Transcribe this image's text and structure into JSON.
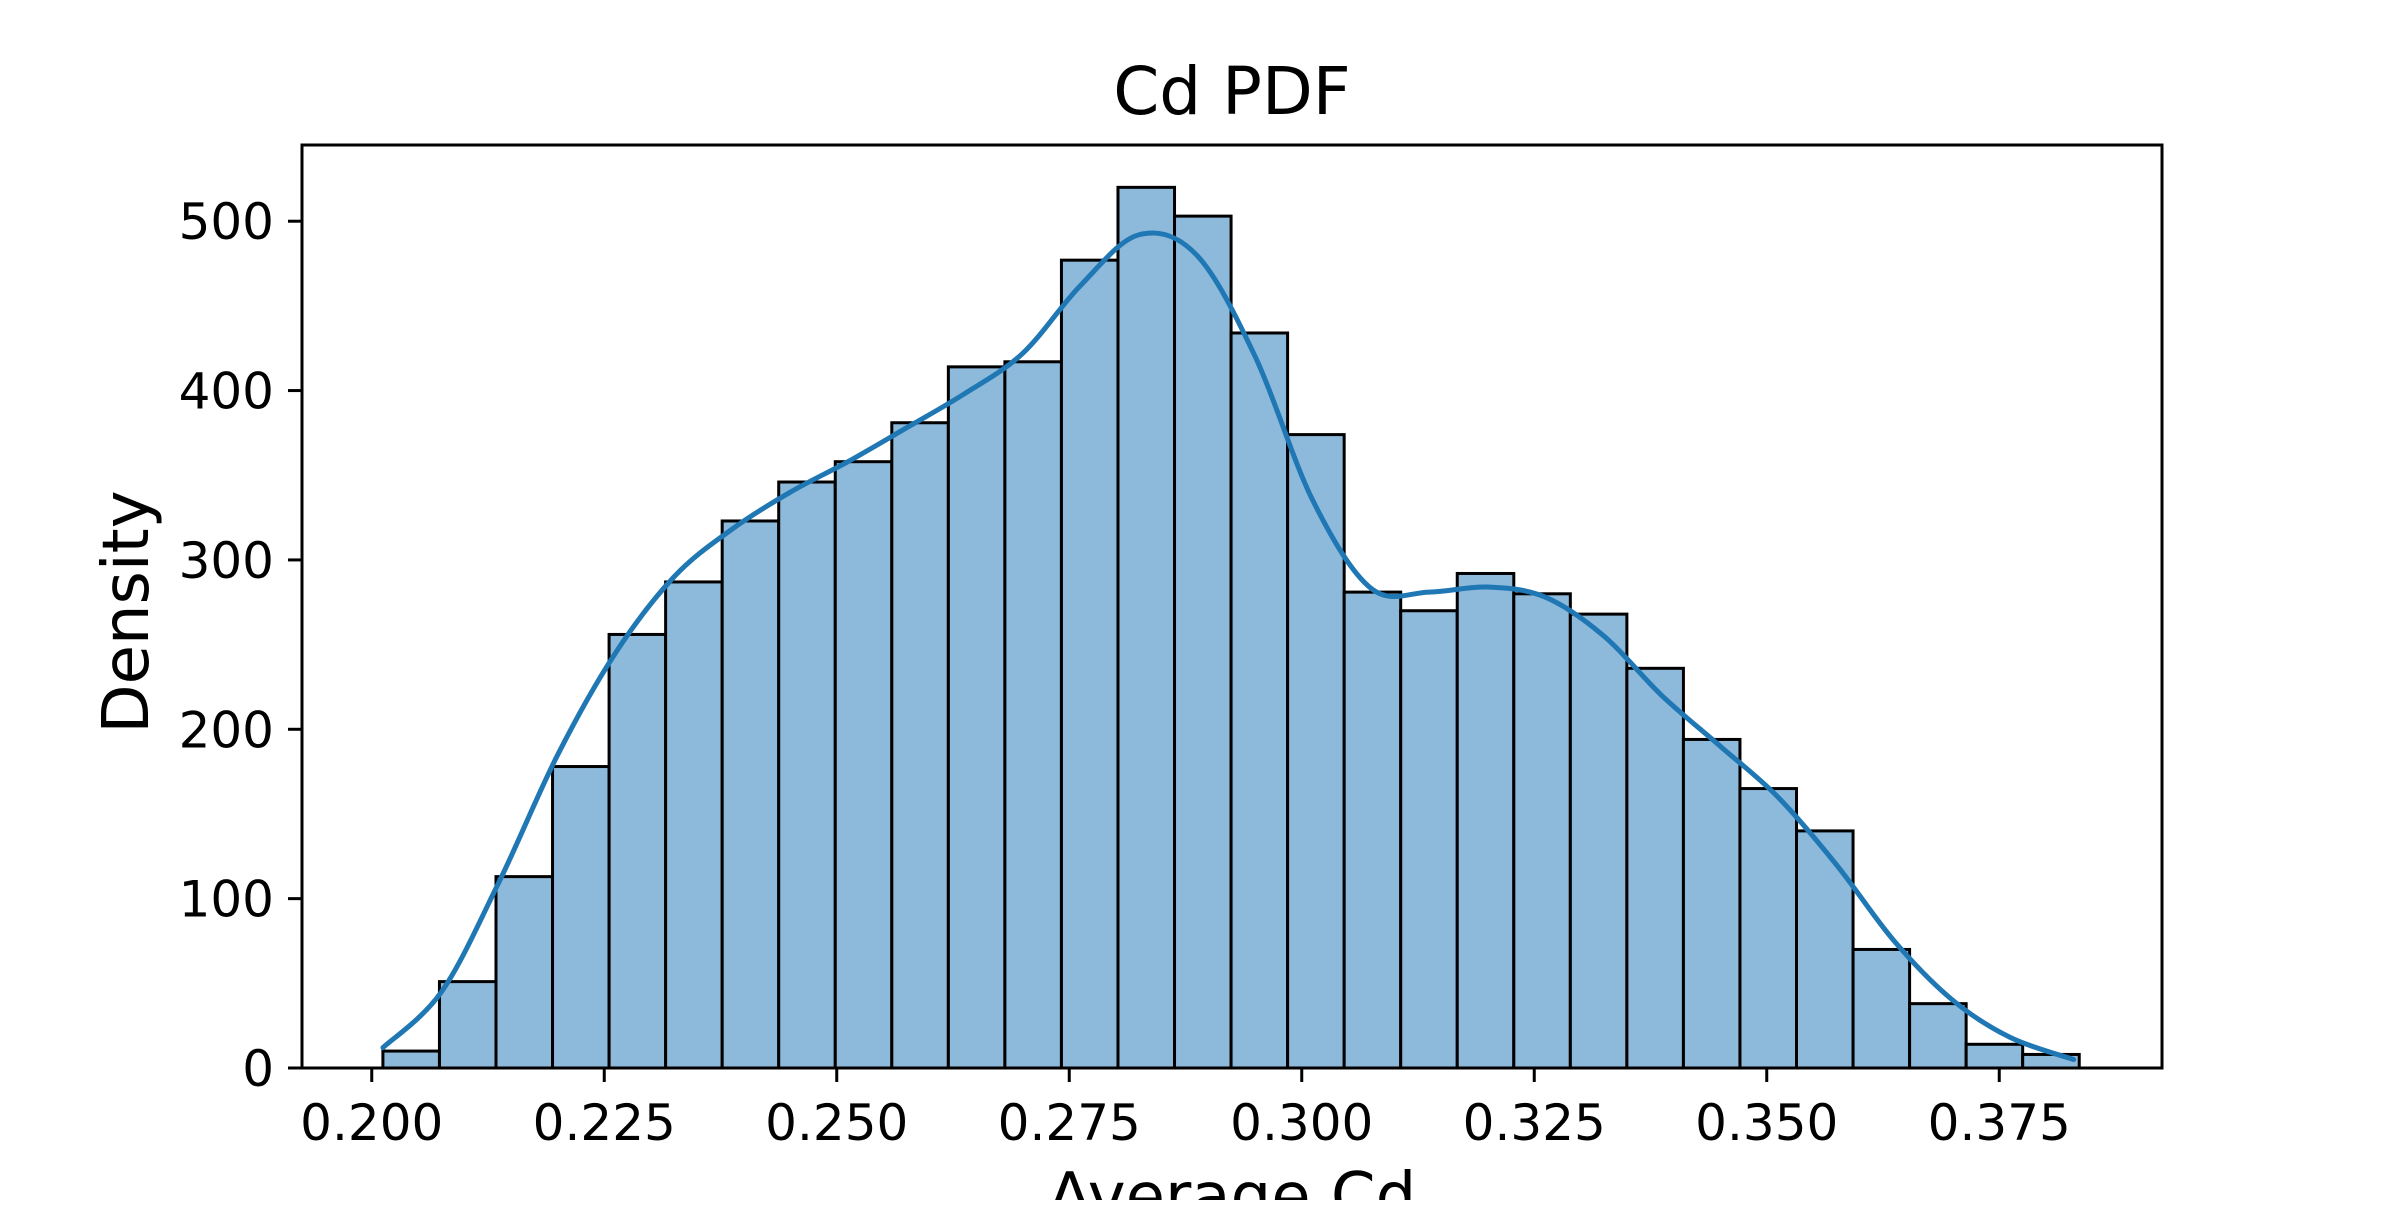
{
  "chart_data": {
    "type": "bar",
    "subtype": "histogram-with-kde",
    "title": "Cd PDF",
    "xlabel": "Average Cd",
    "ylabel": "Density",
    "xlim": [
      0.1925,
      0.3925
    ],
    "ylim": [
      0,
      545
    ],
    "xticks": [
      "0.200",
      "0.225",
      "0.250",
      "0.275",
      "0.300",
      "0.325",
      "0.350",
      "0.375"
    ],
    "xtick_values": [
      0.2,
      0.225,
      0.25,
      0.275,
      0.3,
      0.325,
      0.35,
      0.375
    ],
    "yticks": [
      "0",
      "100",
      "200",
      "300",
      "400",
      "500"
    ],
    "ytick_values": [
      0,
      100,
      200,
      300,
      400,
      500
    ],
    "grid": false,
    "legend": "none",
    "bin_start": 0.2012,
    "bin_width": 0.00608,
    "values": [
      10,
      51,
      113,
      178,
      256,
      287,
      323,
      346,
      358,
      381,
      414,
      417,
      477,
      520,
      503,
      434,
      374,
      281,
      270,
      292,
      280,
      268,
      236,
      194,
      165,
      140,
      70,
      38,
      14,
      8
    ],
    "kde": {
      "x": [
        0.2012,
        0.2075,
        0.2137,
        0.22,
        0.2262,
        0.2325,
        0.2387,
        0.245,
        0.2512,
        0.2575,
        0.2637,
        0.27,
        0.2762,
        0.2825,
        0.2887,
        0.295,
        0.3012,
        0.3075,
        0.3137,
        0.32,
        0.3262,
        0.3325,
        0.3387,
        0.345,
        0.3512,
        0.3575,
        0.3637,
        0.37,
        0.3762,
        0.383
      ],
      "y": [
        12,
        45,
        110,
        185,
        245,
        290,
        318,
        340,
        358,
        378,
        398,
        422,
        462,
        492,
        480,
        420,
        335,
        283,
        281,
        284,
        278,
        255,
        220,
        190,
        160,
        120,
        75,
        40,
        18,
        5
      ]
    },
    "colors": {
      "bar_fill": "#8db9db",
      "bar_edge": "#000000",
      "kde_line": "#1f77b4"
    }
  }
}
